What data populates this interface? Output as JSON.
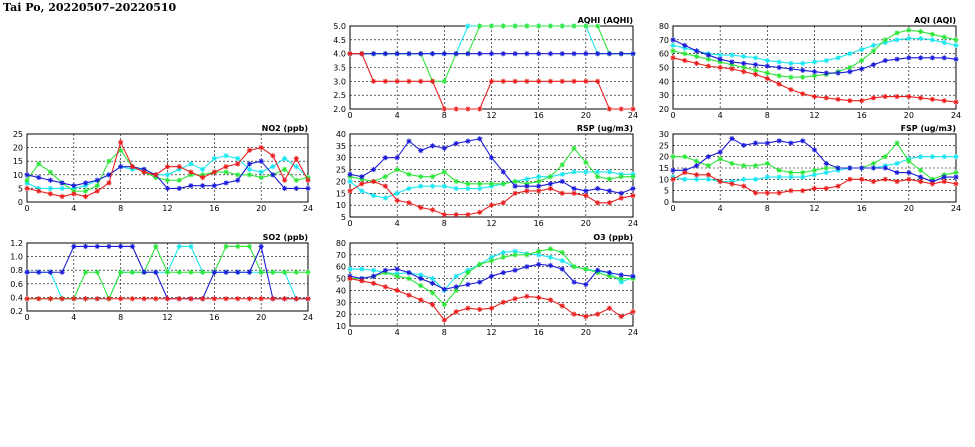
{
  "header": {
    "title": "Tai Po, 20220507–20220510"
  },
  "series_colors": {
    "blue": "#1c1cd8",
    "cyan": "#18e6f0",
    "green": "#2ee63a",
    "red": "#ea2020"
  },
  "chart_data": [
    {
      "id": "aqhi",
      "type": "line",
      "title": "AQHI (AQHI)",
      "xlim": [
        0,
        24
      ],
      "ylim": [
        2.0,
        5.0
      ],
      "xticks": [
        0,
        4,
        8,
        12,
        16,
        20,
        24
      ],
      "yticks": [
        2.0,
        2.5,
        3.0,
        3.5,
        4.0,
        4.5,
        5.0
      ],
      "ytick_labels": [
        "2.0",
        "2.5",
        "3.0",
        "3.5",
        "4.0",
        "4.5",
        "5.0"
      ],
      "grid": true,
      "series": [
        {
          "color": "cyan",
          "values": [
            4,
            4,
            4,
            4,
            4,
            4,
            4,
            4,
            4,
            4,
            5,
            5,
            5,
            5,
            5,
            5,
            5,
            5,
            5,
            5,
            5,
            4,
            4,
            4,
            4
          ]
        },
        {
          "color": "green",
          "values": [
            4,
            4,
            4,
            4,
            4,
            4,
            4,
            3,
            3,
            4,
            4,
            5,
            5,
            5,
            5,
            5,
            5,
            5,
            5,
            5,
            5,
            5,
            4,
            4,
            4
          ]
        },
        {
          "color": "blue",
          "values": [
            4,
            4,
            4,
            4,
            4,
            4,
            4,
            4,
            4,
            4,
            4,
            4,
            4,
            4,
            4,
            4,
            4,
            4,
            4,
            4,
            4,
            4,
            4,
            4,
            4
          ]
        },
        {
          "color": "red",
          "values": [
            4,
            4,
            3,
            3,
            3,
            3,
            3,
            3,
            2,
            2,
            2,
            2,
            3,
            3,
            3,
            3,
            3,
            3,
            3,
            3,
            3,
            3,
            2,
            2,
            2
          ]
        }
      ]
    },
    {
      "id": "aqi",
      "type": "line",
      "title": "AQI (AQI)",
      "xlim": [
        0,
        24
      ],
      "ylim": [
        20,
        80
      ],
      "xticks": [
        0,
        4,
        8,
        12,
        16,
        20,
        24
      ],
      "yticks": [
        20,
        30,
        40,
        50,
        60,
        70,
        80
      ],
      "ytick_labels": [
        "20",
        "30",
        "40",
        "50",
        "60",
        "70",
        "80"
      ],
      "grid": true,
      "series": [
        {
          "color": "cyan",
          "values": [
            66,
            64,
            62,
            60,
            59,
            59,
            58,
            57,
            55,
            54,
            53,
            53,
            54,
            55,
            57,
            60,
            63,
            66,
            68,
            70,
            71,
            71,
            70,
            68,
            66
          ]
        },
        {
          "color": "green",
          "values": [
            62,
            60,
            58,
            56,
            54,
            52,
            50,
            48,
            46,
            44,
            43,
            43,
            44,
            45,
            47,
            50,
            55,
            62,
            70,
            75,
            77,
            76,
            74,
            72,
            70
          ]
        },
        {
          "color": "blue",
          "values": [
            70,
            66,
            62,
            59,
            56,
            54,
            53,
            52,
            51,
            50,
            49,
            48,
            47,
            46,
            46,
            47,
            49,
            52,
            55,
            56,
            57,
            57,
            57,
            57,
            56
          ]
        },
        {
          "color": "red",
          "values": [
            57,
            55,
            53,
            51,
            50,
            49,
            47,
            45,
            42,
            38,
            34,
            31,
            29,
            28,
            27,
            26,
            26,
            28,
            29,
            29,
            29,
            28,
            27,
            26,
            25
          ]
        }
      ]
    },
    {
      "id": "no2",
      "type": "line",
      "title": "NO2 (ppb)",
      "xlim": [
        0,
        24
      ],
      "ylim": [
        0,
        25
      ],
      "xticks": [
        0,
        4,
        8,
        12,
        16,
        20,
        24
      ],
      "yticks": [
        0,
        5,
        10,
        15,
        20,
        25
      ],
      "ytick_labels": [
        "0",
        "5",
        "10",
        "15",
        "20",
        "25"
      ],
      "grid": true,
      "series": [
        {
          "color": "cyan",
          "values": [
            7,
            5,
            5,
            5,
            5,
            6,
            8,
            10,
            13,
            12,
            12,
            10,
            10,
            12,
            14,
            12,
            16,
            17,
            16,
            12,
            11,
            13,
            16,
            13,
            9
          ]
        },
        {
          "color": "green",
          "values": [
            8,
            14,
            11,
            7,
            4,
            4,
            6,
            15,
            19,
            13,
            11,
            9,
            8,
            8,
            10,
            10,
            11,
            11,
            10,
            10,
            9,
            10,
            12,
            8,
            9
          ]
        },
        {
          "color": "blue",
          "values": [
            10,
            9,
            8,
            7,
            6,
            7,
            8,
            10,
            13,
            13,
            12,
            10,
            5,
            5,
            6,
            6,
            6,
            7,
            8,
            14,
            15,
            10,
            5,
            5,
            5
          ]
        },
        {
          "color": "red",
          "values": [
            5,
            4,
            3,
            2,
            3,
            2,
            4,
            7,
            22,
            13,
            11,
            10,
            13,
            13,
            11,
            9,
            11,
            13,
            14,
            19,
            20,
            17,
            8,
            16,
            8
          ]
        }
      ]
    },
    {
      "id": "rsp",
      "type": "line",
      "title": "RSP (ug/m3)",
      "xlim": [
        0,
        24
      ],
      "ylim": [
        5,
        40
      ],
      "xticks": [
        0,
        4,
        8,
        12,
        16,
        20,
        24
      ],
      "yticks": [
        5,
        10,
        15,
        20,
        25,
        30,
        35,
        40
      ],
      "ytick_labels": [
        "5",
        "10",
        "15",
        "20",
        "25",
        "30",
        "35",
        "40"
      ],
      "grid": true,
      "series": [
        {
          "color": "cyan",
          "values": [
            20,
            16,
            14,
            13,
            15,
            17,
            18,
            18,
            18,
            17,
            17,
            17,
            18,
            19,
            20,
            21,
            22,
            22,
            23,
            24,
            24,
            24,
            24,
            23,
            23
          ]
        },
        {
          "color": "green",
          "values": [
            22,
            21,
            20,
            22,
            25,
            23,
            22,
            22,
            24,
            20,
            19,
            19,
            19,
            19,
            20,
            19,
            20,
            22,
            27,
            34,
            28,
            22,
            21,
            22,
            22
          ]
        },
        {
          "color": "blue",
          "values": [
            23,
            22,
            25,
            30,
            30,
            37,
            33,
            35,
            34,
            36,
            37,
            38,
            30,
            24,
            18,
            18,
            18,
            19,
            20,
            17,
            16,
            17,
            16,
            15,
            17
          ]
        },
        {
          "color": "red",
          "values": [
            16,
            19,
            20,
            18,
            12,
            11,
            9,
            8,
            6,
            6,
            6,
            7,
            10,
            11,
            15,
            16,
            16,
            17,
            15,
            15,
            14,
            11,
            11,
            13,
            14
          ]
        }
      ]
    },
    {
      "id": "fsp",
      "type": "line",
      "title": "FSP (ug/m3)",
      "xlim": [
        0,
        24
      ],
      "ylim": [
        0,
        30
      ],
      "xticks": [
        0,
        4,
        8,
        12,
        16,
        20,
        24
      ],
      "yticks": [
        0,
        5,
        10,
        15,
        20,
        25,
        30
      ],
      "ytick_labels": [
        "0",
        "5",
        "10",
        "15",
        "20",
        "25",
        "30"
      ],
      "grid": true,
      "series": [
        {
          "color": "cyan",
          "values": [
            11,
            10,
            10,
            10,
            9,
            9,
            10,
            10,
            11,
            11,
            11,
            11,
            12,
            13,
            14,
            15,
            15,
            15,
            16,
            17,
            19,
            20,
            20,
            20,
            20
          ]
        },
        {
          "color": "green",
          "values": [
            20,
            20,
            18,
            16,
            19,
            17,
            16,
            16,
            17,
            14,
            13,
            13,
            14,
            15,
            15,
            15,
            15,
            17,
            20,
            26,
            18,
            14,
            10,
            12,
            13
          ]
        },
        {
          "color": "blue",
          "values": [
            14,
            14,
            16,
            20,
            22,
            28,
            25,
            26,
            26,
            27,
            26,
            27,
            23,
            17,
            15,
            15,
            15,
            15,
            15,
            13,
            13,
            11,
            9,
            11,
            11
          ]
        },
        {
          "color": "red",
          "values": [
            10,
            13,
            12,
            12,
            9,
            8,
            7,
            4,
            4,
            4,
            5,
            5,
            6,
            6,
            7,
            10,
            10,
            9,
            10,
            9,
            10,
            9,
            8,
            9,
            8
          ]
        }
      ]
    },
    {
      "id": "so2",
      "type": "line",
      "title": "SO2 (ppb)",
      "xlim": [
        0,
        24
      ],
      "ylim": [
        0.2,
        1.2
      ],
      "xticks": [
        0,
        4,
        8,
        12,
        16,
        20,
        24
      ],
      "yticks": [
        0.2,
        0.4,
        0.6,
        0.8,
        1.0,
        1.2
      ],
      "ytick_labels": [
        "0.2",
        "0.4",
        "0.6",
        "0.8",
        "1.0",
        "1.2"
      ],
      "grid": true,
      "series": [
        {
          "color": "cyan",
          "values": [
            0.77,
            0.77,
            0.77,
            0.38,
            0.38,
            0.38,
            0.38,
            0.38,
            0.77,
            0.77,
            0.77,
            0.77,
            0.77,
            1.15,
            1.15,
            0.77,
            0.77,
            0.77,
            0.77,
            0.77,
            0.77,
            0.77,
            0.77,
            0.38,
            0.38
          ]
        },
        {
          "color": "green",
          "values": [
            0.38,
            0.38,
            0.38,
            0.38,
            0.38,
            0.77,
            0.77,
            0.38,
            0.77,
            0.77,
            0.77,
            1.15,
            0.77,
            0.77,
            0.77,
            0.77,
            0.77,
            1.15,
            1.15,
            1.15,
            0.77,
            0.77,
            0.77,
            0.77,
            0.77
          ]
        },
        {
          "color": "blue",
          "values": [
            0.77,
            0.77,
            0.77,
            0.77,
            1.15,
            1.15,
            1.15,
            1.15,
            1.15,
            1.15,
            0.77,
            0.77,
            0.38,
            0.38,
            0.38,
            0.38,
            0.77,
            0.77,
            0.77,
            0.77,
            1.15,
            0.38,
            0.38,
            0.38,
            0.38
          ]
        },
        {
          "color": "red",
          "values": [
            0.38,
            0.38,
            0.38,
            0.38,
            0.38,
            0.38,
            0.38,
            0.38,
            0.38,
            0.38,
            0.38,
            0.38,
            0.38,
            0.38,
            0.38,
            0.38,
            0.38,
            0.38,
            0.38,
            0.38,
            0.38,
            0.38,
            0.38,
            0.38,
            0.38
          ]
        }
      ]
    },
    {
      "id": "o3",
      "type": "line",
      "title": "O3 (ppb)",
      "xlim": [
        0,
        24
      ],
      "ylim": [
        10,
        80
      ],
      "xticks": [
        0,
        4,
        8,
        12,
        16,
        20,
        24
      ],
      "yticks": [
        10,
        20,
        30,
        40,
        50,
        60,
        70,
        80
      ],
      "ytick_labels": [
        "10",
        "20",
        "30",
        "40",
        "50",
        "60",
        "70",
        "80"
      ],
      "grid": true,
      "series": [
        {
          "color": "cyan",
          "values": [
            58,
            58,
            57,
            55,
            54,
            55,
            53,
            50,
            40,
            52,
            57,
            62,
            68,
            72,
            73,
            71,
            70,
            68,
            65,
            60,
            58,
            56,
            55,
            47,
            51
          ]
        },
        {
          "color": "green",
          "values": [
            50,
            50,
            52,
            55,
            52,
            50,
            44,
            38,
            28,
            40,
            55,
            62,
            65,
            68,
            70,
            70,
            73,
            75,
            72,
            60,
            58,
            55,
            52,
            50,
            50
          ]
        },
        {
          "color": "blue",
          "values": [
            52,
            50,
            52,
            57,
            58,
            55,
            50,
            46,
            41,
            43,
            45,
            47,
            52,
            55,
            57,
            60,
            62,
            61,
            58,
            47,
            45,
            57,
            55,
            53,
            52
          ]
        },
        {
          "color": "red",
          "values": [
            50,
            48,
            46,
            43,
            40,
            36,
            32,
            28,
            15,
            22,
            25,
            24,
            25,
            30,
            33,
            35,
            34,
            32,
            27,
            20,
            18,
            20,
            25,
            18,
            22
          ]
        }
      ]
    }
  ]
}
